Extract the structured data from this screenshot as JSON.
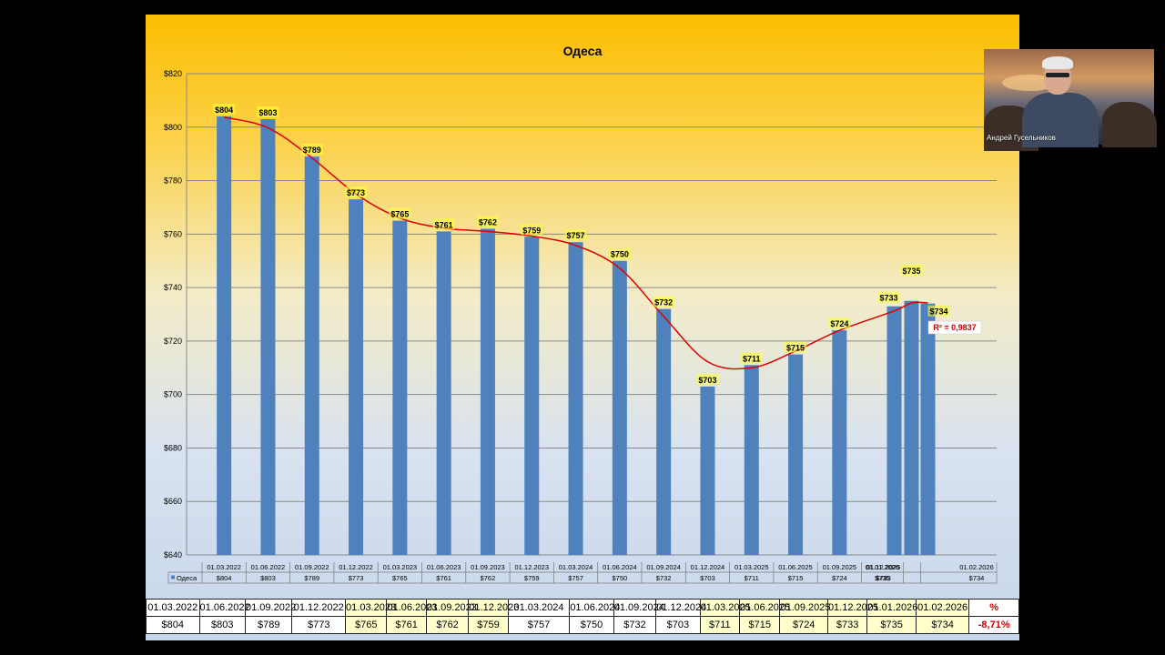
{
  "chart_data": {
    "type": "bar",
    "title": "Одеса",
    "series": [
      {
        "name": "Одеса",
        "values": [
          804,
          803,
          789,
          773,
          765,
          761,
          762,
          759,
          757,
          750,
          732,
          703,
          711,
          715,
          724,
          733,
          735,
          734
        ]
      }
    ],
    "categories": [
      "01.03.2022",
      "01.06.2022",
      "01.09.2022",
      "01.12.2022",
      "01.03.2023",
      "01.06.2023",
      "01.09.2023",
      "01.12.2023",
      "01.03.2024",
      "01.06.2024",
      "01.09.2024",
      "01.12.2024",
      "01.03.2025",
      "01.06.2025",
      "01.09.2025",
      "01.12.2025",
      "01.01.2026",
      "01.02.2026"
    ],
    "data_labels": [
      "$804",
      "$803",
      "$789",
      "$773",
      "$765",
      "$761",
      "$762",
      "$759",
      "$757",
      "$750",
      "$732",
      "$703",
      "$711",
      "$715",
      "$724",
      "$733",
      "$735",
      "$734"
    ],
    "y_ticks": [
      "$820",
      "$800",
      "$780",
      "$760",
      "$740",
      "$720",
      "$700",
      "$680",
      "$660",
      "$640"
    ],
    "ylim": [
      640,
      820
    ],
    "trendline": {
      "type": "polynomial",
      "r2_label": "R² = 0,9837",
      "color": "#e00000"
    },
    "bar_color": "#4f81bd",
    "grid": true,
    "table_series_label": "Одеса"
  },
  "summary_table": {
    "dates": [
      "01.03.2022",
      "01.06.2022",
      "01.09.2022",
      "01.12.2022",
      "01.03.2023",
      "01.06.2023",
      "01.09.2023",
      "01.12.2023",
      "01.03.2024",
      "01.06.2024",
      "01.09.2024",
      "01.12.2024",
      "01.03.2025",
      "01.06.2025",
      "01.09.2025",
      "01.12.2025",
      "01.01.2026",
      "01.02.2026"
    ],
    "values": [
      "$804",
      "$803",
      "$789",
      "$773",
      "$765",
      "$761",
      "$762",
      "$759",
      "$757",
      "$750",
      "$732",
      "$703",
      "$711",
      "$715",
      "$724",
      "$733",
      "$735",
      "$734"
    ],
    "percent_header": "%",
    "percent_value": "-8,71%"
  },
  "webcam": {
    "participant_name": "Андрей Гусельников"
  }
}
